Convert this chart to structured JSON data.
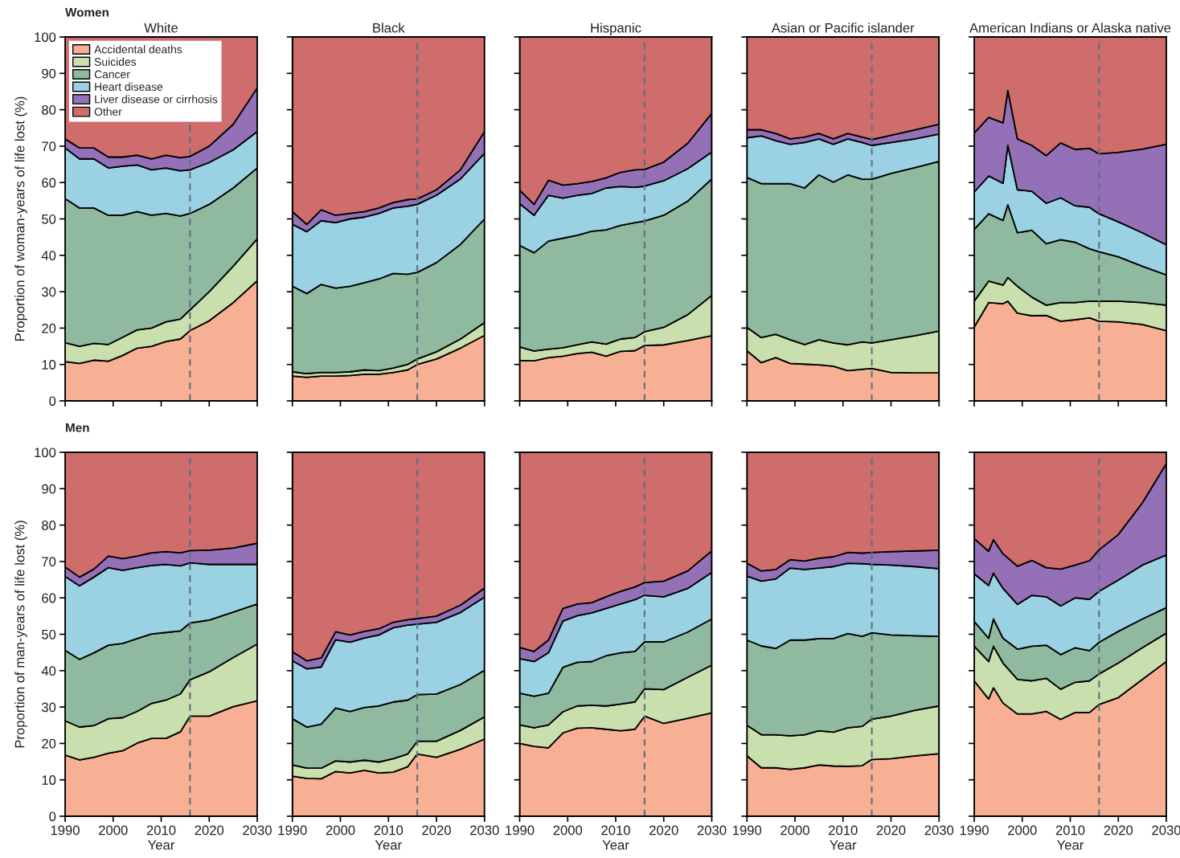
{
  "chart_data": [
    {
      "type": "area",
      "stacked": true,
      "title": "White",
      "ylabel": "Proportion of woman-years of life lost (%)",
      "annotations": [
        "Women"
      ],
      "legend": "top left",
      "tick_labels": "y",
      "xlim": [
        1990,
        2030
      ],
      "ylim": [
        0,
        100
      ],
      "xticks": [
        1990,
        2000,
        2010,
        2020,
        2030
      ],
      "yticks": [
        0,
        10,
        20,
        30,
        40,
        50,
        60,
        70,
        80,
        90,
        100
      ],
      "ref_lines": [
        {
          "axis": "x",
          "value": 2016,
          "color": "#5f6f7f",
          "line_style": "dashed"
        }
      ],
      "x": [
        1990,
        1993,
        1996,
        1999,
        2002,
        2005,
        2008,
        2011,
        2014,
        2016,
        2020,
        2025,
        2030
      ],
      "series": [
        {
          "name": "Accidental deaths",
          "color": "#f7b093",
          "values": [
            10.8,
            10.3,
            11.2,
            10.9,
            12.5,
            14.5,
            15,
            16.3,
            17,
            19.3,
            22,
            27,
            33
          ]
        },
        {
          "name": "Suicides",
          "color": "#c9dfae",
          "values": [
            5.2,
            4.7,
            4.6,
            4.6,
            5,
            5,
            5,
            5.4,
            5.5,
            5.7,
            8,
            10,
            11.5
          ]
        },
        {
          "name": "Cancer",
          "color": "#8fbaa0",
          "values": [
            39.6,
            38,
            37.2,
            35.5,
            33.5,
            32.5,
            31,
            29.8,
            28.3,
            26.5,
            24,
            21.5,
            19.5
          ]
        },
        {
          "name": "Heart disease",
          "color": "#9ad2e3",
          "values": [
            13.9,
            13.5,
            13.5,
            13,
            13.5,
            12.8,
            12.5,
            12.5,
            12.4,
            12,
            11.5,
            10.5,
            10
          ]
        },
        {
          "name": "Liver disease or cirrhosis",
          "color": "#9470b6",
          "values": [
            2.5,
            3,
            3,
            3,
            2.5,
            2.7,
            3,
            3.5,
            3.6,
            3.7,
            4.5,
            7,
            12
          ]
        },
        {
          "name": "Other",
          "color": "#cf6d6d",
          "values": [
            28,
            30.5,
            30.5,
            33,
            33,
            32.5,
            33.5,
            32.5,
            33.2,
            32.8,
            30,
            24,
            14
          ]
        }
      ]
    },
    {
      "type": "area",
      "stacked": true,
      "title": "Black",
      "tick_labels": false,
      "xlim": [
        1990,
        2030
      ],
      "ylim": [
        0,
        100
      ],
      "xticks": [
        1990,
        2000,
        2010,
        2020,
        2030
      ],
      "yticks": [
        0,
        10,
        20,
        30,
        40,
        50,
        60,
        70,
        80,
        90,
        100
      ],
      "ref_lines": [
        {
          "axis": "x",
          "value": 2016,
          "color": "#5f6f7f",
          "line_style": "dashed"
        }
      ],
      "x": [
        1990,
        1993,
        1996,
        1999,
        2002,
        2005,
        2008,
        2011,
        2014,
        2016,
        2020,
        2025,
        2030
      ],
      "series": [
        {
          "color": "#f7b093",
          "values": [
            6.8,
            6.5,
            6.8,
            6.8,
            7,
            7.3,
            7.3,
            7.8,
            8.5,
            10,
            11.5,
            14.5,
            18
          ]
        },
        {
          "color": "#c9dfae",
          "values": [
            1.2,
            1,
            1,
            1,
            1,
            1.2,
            1,
            1.2,
            1.5,
            1.5,
            2,
            2.5,
            3.5
          ]
        },
        {
          "color": "#8fbaa0",
          "values": [
            23.5,
            22,
            24.2,
            23.2,
            23.5,
            24,
            25.2,
            26,
            24.8,
            23.8,
            24.5,
            26,
            28.5
          ]
        },
        {
          "color": "#9ad2e3",
          "values": [
            17,
            17,
            17.5,
            18,
            18.5,
            18,
            18,
            18,
            18.7,
            18.7,
            18.5,
            18,
            18
          ]
        },
        {
          "color": "#9470b6",
          "values": [
            3.5,
            2,
            3,
            2,
            1.5,
            1.5,
            1.5,
            1.5,
            1.8,
            1.5,
            1.5,
            2.5,
            6
          ]
        },
        {
          "color": "#cf6d6d",
          "values": [
            48,
            51.5,
            47.5,
            49,
            48.5,
            48,
            47,
            45.5,
            44.7,
            44.5,
            42,
            36.5,
            26
          ]
        }
      ]
    },
    {
      "type": "area",
      "stacked": true,
      "title": "Hispanic",
      "tick_labels": false,
      "xlim": [
        1990,
        2030
      ],
      "ylim": [
        0,
        100
      ],
      "xticks": [
        1990,
        2000,
        2010,
        2020,
        2030
      ],
      "yticks": [
        0,
        10,
        20,
        30,
        40,
        50,
        60,
        70,
        80,
        90,
        100
      ],
      "ref_lines": [
        {
          "axis": "x",
          "value": 2016,
          "color": "#5f6f7f",
          "line_style": "dashed"
        }
      ],
      "x": [
        1990,
        1993,
        1996,
        1999,
        2002,
        2005,
        2008,
        2011,
        2014,
        2016,
        2020,
        2025,
        2030
      ],
      "series": [
        {
          "color": "#f7b093",
          "values": [
            11.1,
            11,
            11.9,
            12.3,
            13,
            13.4,
            12.3,
            13.6,
            13.8,
            15.2,
            15.4,
            16.6,
            17.9
          ]
        },
        {
          "color": "#c9dfae",
          "values": [
            3.7,
            2.7,
            2.3,
            2.3,
            2.4,
            2.8,
            3.3,
            3.4,
            3.6,
            3.8,
            4.8,
            7.1,
            11.1
          ]
        },
        {
          "color": "#8fbaa0",
          "values": [
            27.9,
            27,
            29.7,
            30.1,
            30.1,
            30.4,
            31.4,
            31.2,
            31.6,
            30.4,
            30.8,
            31.2,
            32
          ]
        },
        {
          "color": "#9ad2e3",
          "values": [
            11.5,
            10.3,
            12.6,
            11,
            11,
            10.4,
            11.5,
            10.7,
            9.7,
            9.6,
            9.5,
            8.9,
            7.4
          ]
        },
        {
          "color": "#9470b6",
          "values": [
            3.7,
            3,
            4.1,
            3.6,
            3.2,
            3.3,
            2.8,
            3.9,
            4.8,
            4.6,
            5.1,
            7,
            10.6
          ]
        },
        {
          "color": "#cf6d6d",
          "values": [
            42.1,
            46,
            39.4,
            40.7,
            40.3,
            39.7,
            38.7,
            37.2,
            36.5,
            36.4,
            34.4,
            29.2,
            21
          ]
        }
      ]
    },
    {
      "type": "area",
      "stacked": true,
      "title": "Asian or Pacific islander",
      "tick_labels": false,
      "xlim": [
        1990,
        2030
      ],
      "ylim": [
        0,
        100
      ],
      "xticks": [
        1990,
        2000,
        2010,
        2020,
        2030
      ],
      "yticks": [
        0,
        10,
        20,
        30,
        40,
        50,
        60,
        70,
        80,
        90,
        100
      ],
      "ref_lines": [
        {
          "axis": "x",
          "value": 2016,
          "color": "#5f6f7f",
          "line_style": "dashed"
        }
      ],
      "x": [
        1990,
        1993,
        1996,
        1999,
        2002,
        2005,
        2008,
        2011,
        2014,
        2016,
        2020,
        2025,
        2030
      ],
      "series": [
        {
          "color": "#f7b093",
          "values": [
            13.8,
            10.5,
            11.9,
            10.3,
            10.1,
            9.9,
            9.5,
            8.3,
            8.7,
            8.9,
            7.8,
            7.7,
            7.7
          ]
        },
        {
          "color": "#c9dfae",
          "values": [
            6.4,
            6.9,
            6.4,
            6.5,
            5.4,
            6.9,
            6.4,
            7.1,
            7.5,
            7,
            9,
            10.2,
            11.5
          ]
        },
        {
          "color": "#8fbaa0",
          "values": [
            41.2,
            42.3,
            41.4,
            42.9,
            43,
            45.3,
            44.2,
            46.7,
            44.7,
            45,
            45.7,
            46.2,
            46.6
          ]
        },
        {
          "color": "#9ad2e3",
          "values": [
            10.9,
            13.1,
            11.8,
            10.8,
            12.5,
            9.9,
            10.4,
            9.9,
            10.1,
            9.3,
            8.5,
            7.9,
            7.5
          ]
        },
        {
          "color": "#9470b6",
          "values": [
            2.2,
            1.7,
            2,
            1.5,
            1.5,
            1.5,
            1.5,
            1.5,
            1.5,
            1.6,
            2,
            2.5,
            2.7
          ]
        },
        {
          "color": "#cf6d6d",
          "values": [
            25.5,
            25.5,
            26.5,
            28,
            27.5,
            26.5,
            28,
            26.5,
            27.5,
            28.2,
            27,
            25.5,
            24
          ]
        }
      ]
    },
    {
      "type": "area",
      "stacked": true,
      "title": "American Indians or Alaska native",
      "tick_labels": false,
      "xlim": [
        1990,
        2030
      ],
      "ylim": [
        0,
        100
      ],
      "xticks": [
        1990,
        2000,
        2010,
        2020,
        2030
      ],
      "yticks": [
        0,
        10,
        20,
        30,
        40,
        50,
        60,
        70,
        80,
        90,
        100
      ],
      "ref_lines": [
        {
          "axis": "x",
          "value": 2016,
          "color": "#5f6f7f",
          "line_style": "dashed"
        }
      ],
      "x": [
        1990,
        1993,
        1996,
        1997,
        1999,
        2002,
        2005,
        2008,
        2011,
        2014,
        2016,
        2020,
        2025,
        2030
      ],
      "series": [
        {
          "color": "#f7b093",
          "values": [
            20.3,
            27,
            26.7,
            27.4,
            24.1,
            23.4,
            23.5,
            21.9,
            22.3,
            22.8,
            21.9,
            21.7,
            21,
            19.3
          ]
        },
        {
          "color": "#c9dfae",
          "values": [
            7.1,
            5.9,
            5.1,
            6.5,
            7.4,
            5.1,
            2.8,
            5.1,
            4.7,
            4.6,
            5.5,
            5.7,
            6,
            7
          ]
        },
        {
          "color": "#8fbaa0",
          "values": [
            19.7,
            18.5,
            17.8,
            20,
            14.7,
            18.4,
            16.9,
            17.3,
            16.6,
            14.4,
            13.6,
            12.2,
            10,
            8.3
          ]
        },
        {
          "color": "#9ad2e3",
          "values": [
            10.3,
            10.4,
            10.2,
            16.3,
            11.8,
            10.7,
            11.1,
            11.5,
            10,
            11.4,
            10.4,
            9.6,
            9.2,
            8.3
          ]
        },
        {
          "color": "#9470b6",
          "values": [
            16.2,
            16.1,
            16.6,
            15.1,
            14,
            12.6,
            13.1,
            15.1,
            15.5,
            16.2,
            16.5,
            19.1,
            23,
            27.6
          ]
        },
        {
          "color": "#cf6d6d",
          "values": [
            26.4,
            22.1,
            23.6,
            14.7,
            28,
            29.8,
            32.6,
            29.1,
            30.9,
            30.6,
            32.1,
            31.7,
            30.8,
            29.5
          ]
        }
      ]
    },
    {
      "type": "area",
      "stacked": true,
      "xlabel": "Year",
      "ylabel": "Proportion of man-years of life lost (%)",
      "annotations": [
        "Men"
      ],
      "xlim": [
        1990,
        2030
      ],
      "ylim": [
        0,
        100
      ],
      "xticks": [
        1990,
        2000,
        2010,
        2020,
        2030
      ],
      "yticks": [
        0,
        10,
        20,
        30,
        40,
        50,
        60,
        70,
        80,
        90,
        100
      ],
      "ref_lines": [
        {
          "axis": "x",
          "value": 2016,
          "color": "#5f6f7f",
          "line_style": "dashed"
        }
      ],
      "x": [
        1990,
        1993,
        1996,
        1999,
        2002,
        2005,
        2008,
        2011,
        2014,
        2016,
        2020,
        2025,
        2030
      ],
      "series": [
        {
          "color": "#f7b093",
          "values": [
            16.8,
            15.5,
            16.2,
            17.3,
            18,
            20.1,
            21.4,
            21.4,
            23.2,
            27.5,
            27.5,
            30.1,
            31.7
          ]
        },
        {
          "color": "#c9dfae",
          "values": [
            9.4,
            9,
            8.7,
            9.5,
            9.1,
            8.7,
            9.6,
            10.5,
            10.4,
            10,
            12.2,
            13.5,
            15.6
          ]
        },
        {
          "color": "#8fbaa0",
          "values": [
            19.4,
            18.6,
            20,
            20.2,
            20.4,
            20,
            19.1,
            18.6,
            17.3,
            15.6,
            14.2,
            12.5,
            11
          ]
        },
        {
          "color": "#9ad2e3",
          "values": [
            20.3,
            20.2,
            20.8,
            21.3,
            20.1,
            19.5,
            18.8,
            18.7,
            17.9,
            16.5,
            15.3,
            13.1,
            10.9
          ]
        },
        {
          "color": "#9470b6",
          "values": [
            2.6,
            2.4,
            2.2,
            3.2,
            3.2,
            3.2,
            3.5,
            3.5,
            3.6,
            3.4,
            3.9,
            4.5,
            5.8
          ]
        },
        {
          "color": "#cf6d6d",
          "values": [
            31.5,
            34.3,
            32.1,
            28.5,
            29.2,
            28.5,
            27.6,
            27.3,
            27.6,
            27,
            26.9,
            26.3,
            25
          ]
        }
      ]
    },
    {
      "type": "area",
      "stacked": true,
      "xlabel": "Year",
      "tick_labels": "x",
      "xlim": [
        1990,
        2030
      ],
      "ylim": [
        0,
        100
      ],
      "xticks": [
        1990,
        2000,
        2010,
        2020,
        2030
      ],
      "yticks": [
        0,
        10,
        20,
        30,
        40,
        50,
        60,
        70,
        80,
        90,
        100
      ],
      "ref_lines": [
        {
          "axis": "x",
          "value": 2016,
          "color": "#5f6f7f",
          "line_style": "dashed"
        }
      ],
      "x": [
        1990,
        1993,
        1996,
        1999,
        2002,
        2005,
        2008,
        2011,
        2014,
        2016,
        2020,
        2025,
        2030
      ],
      "series": [
        {
          "color": "#f7b093",
          "values": [
            11,
            10.4,
            10.3,
            12.3,
            11.9,
            12.6,
            11.9,
            12.1,
            13.6,
            17.1,
            16.2,
            18.4,
            21.2
          ]
        },
        {
          "color": "#c9dfae",
          "values": [
            3.1,
            2.8,
            2.9,
            2.9,
            3,
            2.8,
            3,
            3.7,
            3.5,
            3.5,
            4.4,
            5.2,
            6.1
          ]
        },
        {
          "color": "#8fbaa0",
          "values": [
            12.7,
            11.3,
            12.1,
            14.5,
            13.9,
            14.5,
            15.4,
            15.6,
            14.8,
            12.8,
            13,
            12.6,
            12.8
          ]
        },
        {
          "color": "#9ad2e3",
          "values": [
            15.9,
            16,
            15.7,
            18.8,
            19,
            19.1,
            19.5,
            20.4,
            20.6,
            19.4,
            19.7,
            19.8,
            20.1
          ]
        },
        {
          "color": "#9470b6",
          "values": [
            2.5,
            2.2,
            2.5,
            2.2,
            2,
            1.8,
            1.7,
            1.5,
            1.5,
            1.5,
            1.7,
            2,
            2.5
          ]
        },
        {
          "color": "#cf6d6d",
          "values": [
            54.8,
            57.3,
            56.5,
            49.3,
            50.2,
            49.2,
            48.5,
            46.7,
            46,
            45.7,
            45,
            42,
            37.3
          ]
        }
      ]
    },
    {
      "type": "area",
      "stacked": true,
      "xlabel": "Year",
      "tick_labels": "x",
      "xlim": [
        1990,
        2030
      ],
      "ylim": [
        0,
        100
      ],
      "xticks": [
        1990,
        2000,
        2010,
        2020,
        2030
      ],
      "yticks": [
        0,
        10,
        20,
        30,
        40,
        50,
        60,
        70,
        80,
        90,
        100
      ],
      "ref_lines": [
        {
          "axis": "x",
          "value": 2016,
          "color": "#5f6f7f",
          "line_style": "dashed"
        }
      ],
      "x": [
        1990,
        1993,
        1996,
        1999,
        2002,
        2005,
        2008,
        2011,
        2014,
        2016,
        2020,
        2025,
        2030
      ],
      "series": [
        {
          "color": "#f7b093",
          "values": [
            20,
            19.2,
            18.8,
            22.9,
            24.2,
            24.3,
            23.9,
            23.5,
            23.9,
            27.5,
            25.5,
            26.9,
            28.4
          ]
        },
        {
          "color": "#c9dfae",
          "values": [
            5.1,
            5.1,
            6.3,
            5.8,
            6.1,
            6.2,
            6.4,
            7.3,
            7.5,
            7.5,
            9.3,
            11.3,
            13.1
          ]
        },
        {
          "color": "#8fbaa0",
          "values": [
            8.7,
            8.7,
            8.7,
            12.2,
            12,
            12,
            13.8,
            14.1,
            13.9,
            12.9,
            13.1,
            12.4,
            12.7
          ]
        },
        {
          "color": "#9ad2e3",
          "values": [
            9.5,
            9.5,
            11.1,
            12.7,
            12.8,
            13.4,
            13,
            13.4,
            14.2,
            12.8,
            12.4,
            12,
            12.8
          ]
        },
        {
          "color": "#9470b6",
          "values": [
            3.1,
            2.8,
            3.5,
            3.5,
            3.2,
            2.8,
            3.2,
            3.5,
            3.5,
            3.5,
            4.3,
            4.8,
            5.9
          ]
        },
        {
          "color": "#cf6d6d",
          "values": [
            53.6,
            54.7,
            51.6,
            42.9,
            41.7,
            41.3,
            39.7,
            38.2,
            37,
            35.8,
            35.4,
            32.6,
            27.1
          ]
        }
      ]
    },
    {
      "type": "area",
      "stacked": true,
      "xlabel": "Year",
      "tick_labels": "x",
      "xlim": [
        1990,
        2030
      ],
      "ylim": [
        0,
        100
      ],
      "xticks": [
        1990,
        2000,
        2010,
        2020,
        2030
      ],
      "yticks": [
        0,
        10,
        20,
        30,
        40,
        50,
        60,
        70,
        80,
        90,
        100
      ],
      "ref_lines": [
        {
          "axis": "x",
          "value": 2016,
          "color": "#5f6f7f",
          "line_style": "dashed"
        }
      ],
      "x": [
        1990,
        1993,
        1996,
        1999,
        2002,
        2005,
        2008,
        2011,
        2014,
        2016,
        2020,
        2025,
        2030
      ],
      "series": [
        {
          "color": "#f7b093",
          "values": [
            16.6,
            13.3,
            13.3,
            12.9,
            13.3,
            14.1,
            13.8,
            13.7,
            13.9,
            15.6,
            15.8,
            16.6,
            17.2
          ]
        },
        {
          "color": "#c9dfae",
          "values": [
            8.4,
            9.1,
            9.1,
            9.2,
            9.1,
            9.4,
            9.3,
            10.6,
            10.8,
            11.1,
            11.7,
            12.5,
            13.1
          ]
        },
        {
          "color": "#8fbaa0",
          "values": [
            23.4,
            24.4,
            23.7,
            26.3,
            26,
            25.3,
            25.7,
            25.9,
            24.7,
            23.7,
            22.3,
            20.5,
            19.1
          ]
        },
        {
          "color": "#9ad2e3",
          "values": [
            17.6,
            17.8,
            19.1,
            19.8,
            19.4,
            19.4,
            19.8,
            19.3,
            20,
            18.8,
            19.2,
            19,
            18.6
          ]
        },
        {
          "color": "#9470b6",
          "values": [
            3.5,
            2.8,
            2.6,
            2.3,
            2.3,
            2.7,
            2.7,
            3,
            2.9,
            3.3,
            3.7,
            4.3,
            5.1
          ]
        },
        {
          "color": "#cf6d6d",
          "values": [
            30.5,
            32.6,
            32.2,
            29.5,
            29.9,
            29.1,
            28.7,
            27.5,
            27.7,
            27.5,
            27.3,
            27.1,
            26.9
          ]
        }
      ]
    },
    {
      "type": "area",
      "stacked": true,
      "xlabel": "Year",
      "tick_labels": "x",
      "xlim": [
        1990,
        2030
      ],
      "ylim": [
        0,
        100
      ],
      "xticks": [
        1990,
        2000,
        2010,
        2020,
        2030
      ],
      "yticks": [
        0,
        10,
        20,
        30,
        40,
        50,
        60,
        70,
        80,
        90,
        100
      ],
      "ref_lines": [
        {
          "axis": "x",
          "value": 2016,
          "color": "#5f6f7f",
          "line_style": "dashed"
        }
      ],
      "x": [
        1990,
        1993,
        1994,
        1996,
        1999,
        2002,
        2005,
        2008,
        2011,
        2014,
        2016,
        2020,
        2025,
        2030
      ],
      "series": [
        {
          "color": "#f7b093",
          "values": [
            37.2,
            32.2,
            35.3,
            31.1,
            28.1,
            28.1,
            28.8,
            26.6,
            28.5,
            28.5,
            30.7,
            32.6,
            37.6,
            42.5
          ]
        },
        {
          "color": "#c9dfae",
          "values": [
            9.5,
            10.3,
            11.4,
            11,
            9.5,
            9.1,
            9.1,
            8.3,
            8.3,
            8.7,
            8.4,
            9.5,
            8.7,
            7.8
          ]
        },
        {
          "color": "#8fbaa0",
          "values": [
            6.8,
            6.4,
            7.5,
            6.8,
            8.3,
            9.5,
            9.1,
            9.5,
            9.5,
            8.3,
            8.7,
            8.7,
            7.9,
            7
          ]
        },
        {
          "color": "#9ad2e3",
          "values": [
            13.1,
            14.5,
            12.6,
            13.7,
            12.3,
            14,
            13.3,
            13.4,
            13.7,
            14.1,
            14,
            14.1,
            14.8,
            14.5
          ]
        },
        {
          "color": "#9470b6",
          "values": [
            9.7,
            9.4,
            9.2,
            9.5,
            10.5,
            9.6,
            8,
            10.1,
            9,
            10.6,
            11.4,
            12.5,
            17.1,
            25.1
          ]
        },
        {
          "color": "#cf6d6d",
          "values": [
            23.7,
            27.2,
            24,
            27.9,
            31.3,
            29.7,
            31.7,
            32.1,
            31,
            29.8,
            26.8,
            22.6,
            13.9,
            3.1
          ]
        }
      ]
    }
  ]
}
